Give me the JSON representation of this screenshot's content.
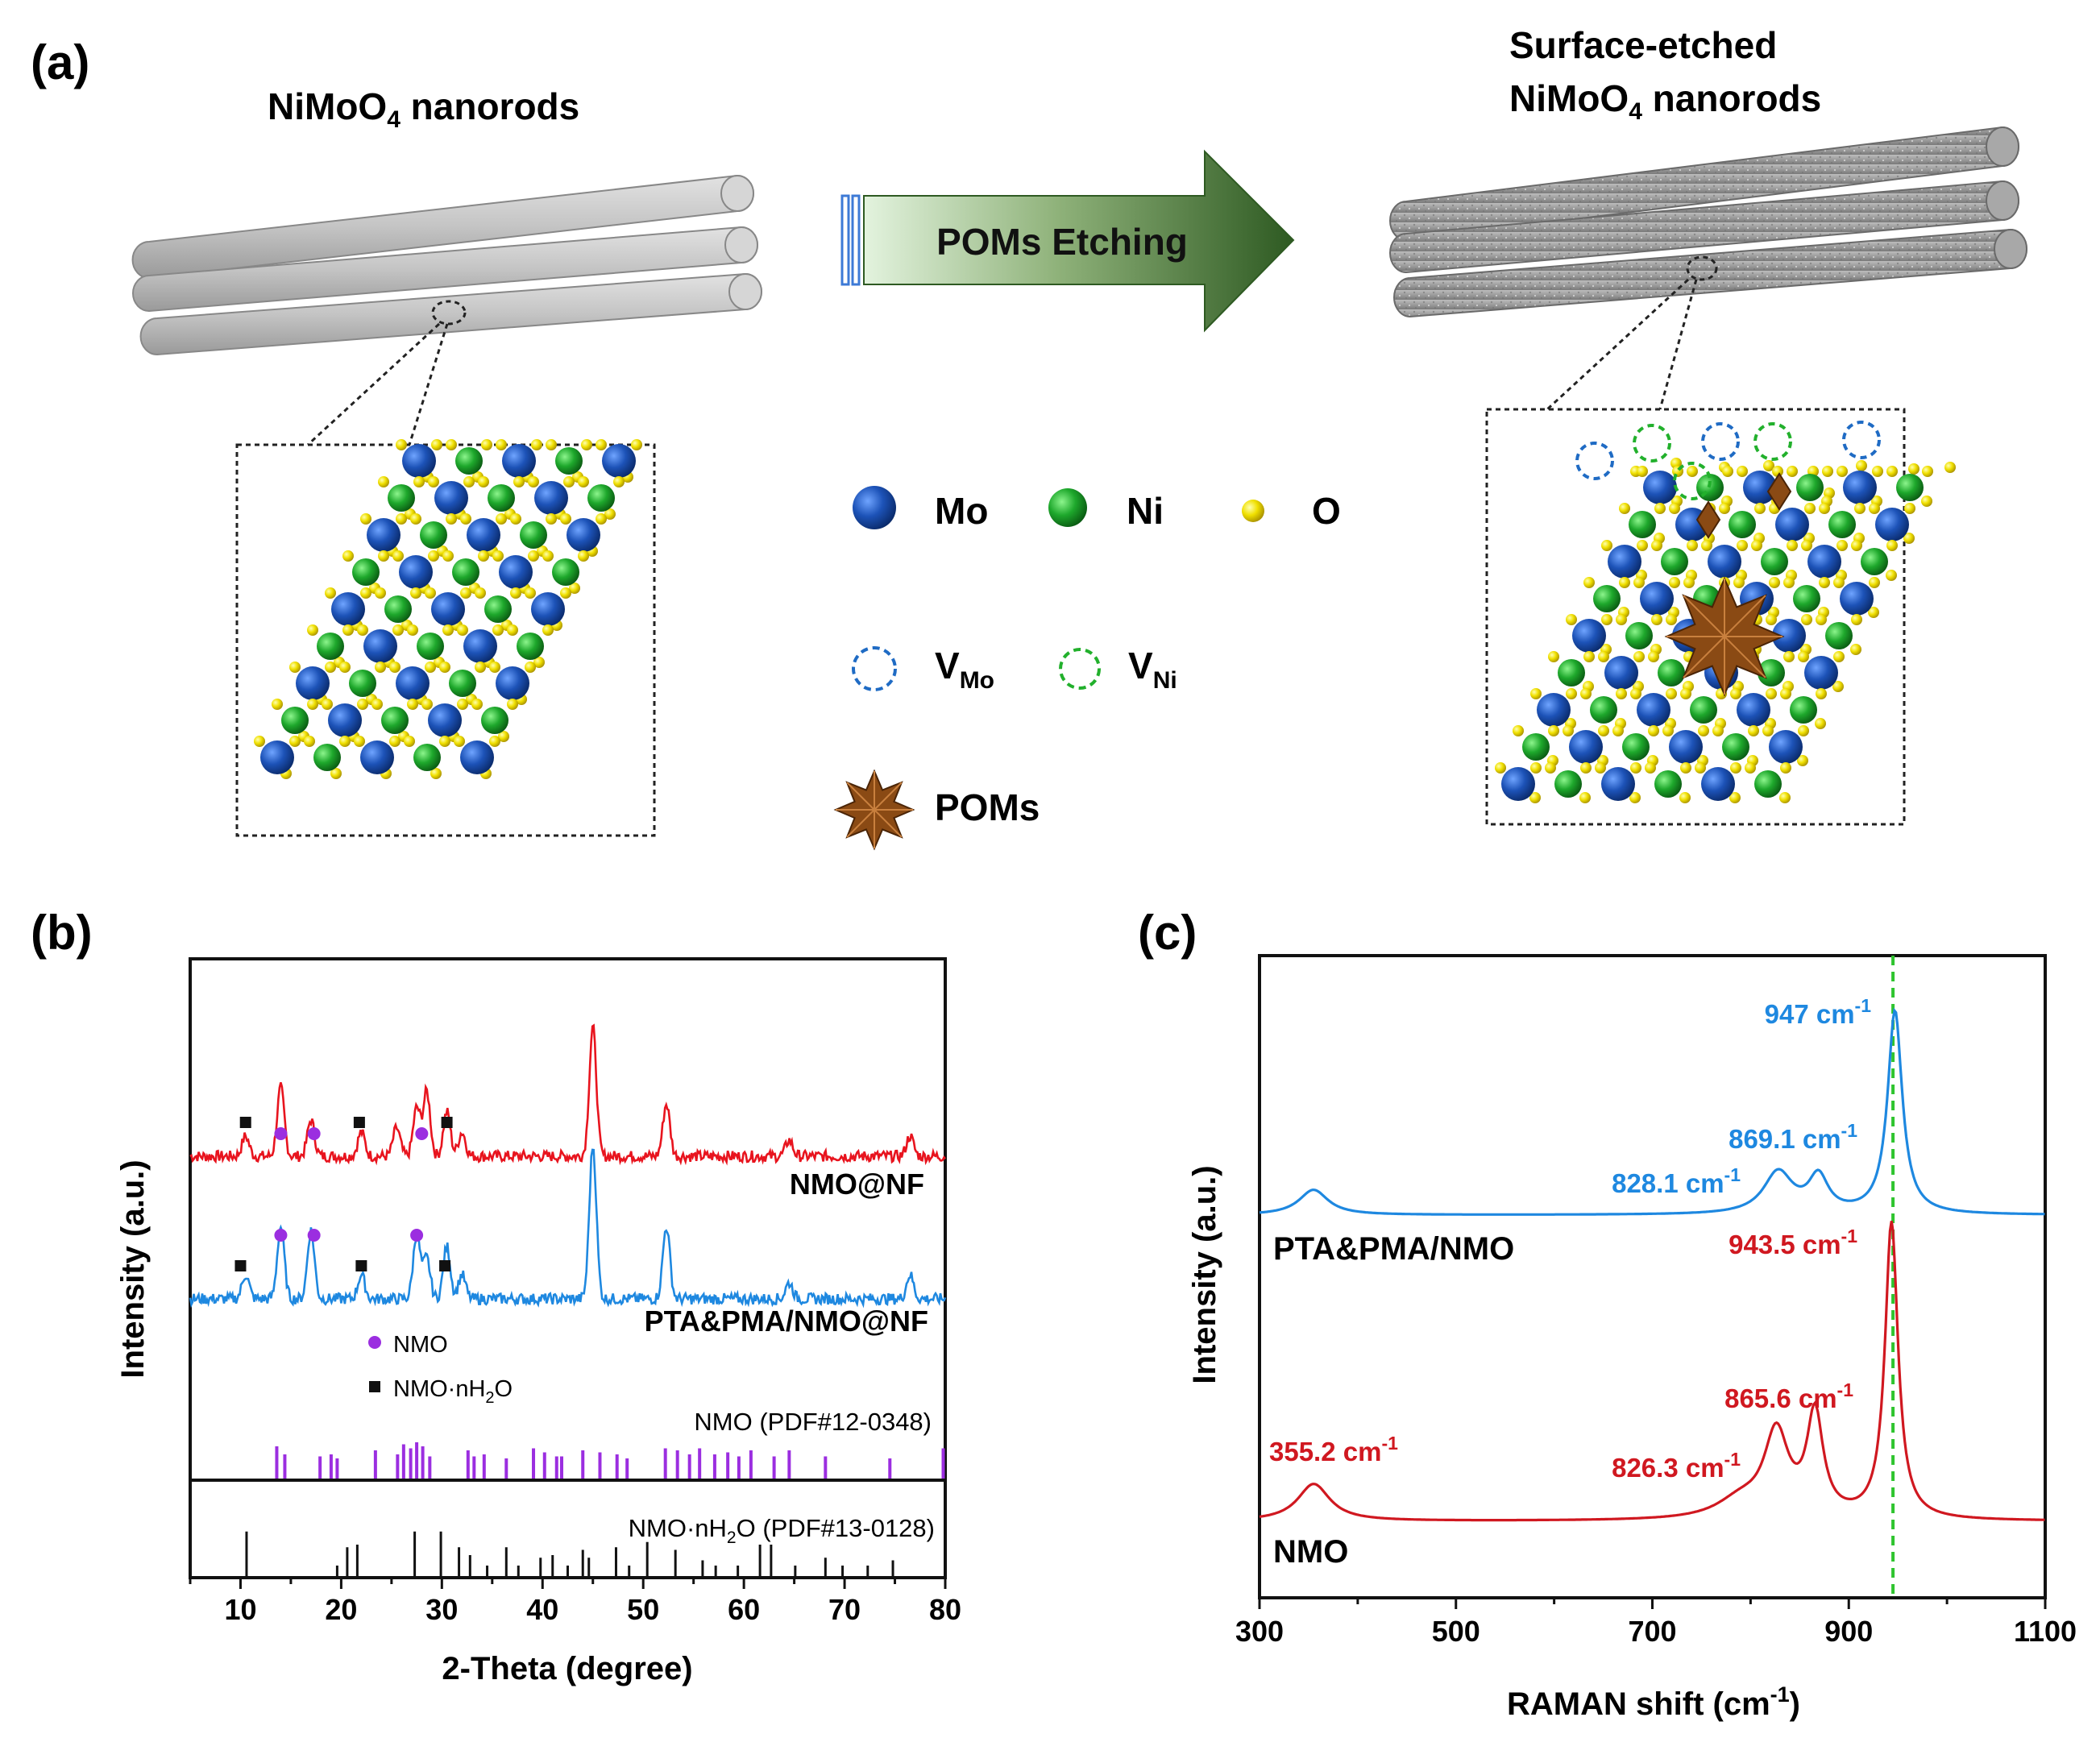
{
  "panel_a": {
    "label": "(a)",
    "left_title": "NiMoO",
    "left_title_sub": "4",
    "left_title_rest": " nanorods",
    "right_title_line1": "Surface-etched",
    "right_title_line2": "NiMoO",
    "right_title_line2_sub": "4",
    "right_title_line2_rest": " nanorods",
    "arrow_label": "POMs Etching",
    "legend": {
      "mo": "Mo",
      "ni": "Ni",
      "o": "O",
      "v_mo": "V",
      "v_mo_sub": "Mo",
      "v_ni": "V",
      "v_ni_sub": "Ni",
      "poms": "POMs"
    },
    "colors": {
      "mo": "#1f4e9c",
      "ni": "#1e9e2f",
      "o": "#f2e600",
      "poms": "#8a4a14",
      "arrow": "#3b6a2a"
    }
  },
  "chart_data": [
    {
      "panel": "(b)",
      "type": "line",
      "xlabel": "2-Theta (degree)",
      "ylabel": "Intensity (a.u.)",
      "xlim": [
        5,
        80
      ],
      "xticks": [
        "10",
        "20",
        "30",
        "40",
        "50",
        "60",
        "70",
        "80"
      ],
      "xtick_values": [
        10,
        20,
        30,
        40,
        50,
        60,
        70,
        80
      ],
      "series": [
        {
          "name": "NMO@NF",
          "color": "#e8141e",
          "peaks": [
            [
              10.5,
              0.25
            ],
            [
              14.0,
              0.85
            ],
            [
              17.0,
              0.45
            ],
            [
              22.0,
              0.3
            ],
            [
              25.5,
              0.35
            ],
            [
              27.5,
              0.6
            ],
            [
              28.5,
              0.8
            ],
            [
              30.5,
              0.55
            ],
            [
              32.0,
              0.3
            ],
            [
              45.0,
              1.6
            ],
            [
              52.3,
              0.65
            ],
            [
              64.5,
              0.2
            ],
            [
              76.5,
              0.25
            ]
          ]
        },
        {
          "name": "PTA&PMA/NMO@NF",
          "color": "#1e88e0",
          "peaks": [
            [
              10.5,
              0.3
            ],
            [
              14.0,
              0.9
            ],
            [
              17.0,
              0.85
            ],
            [
              22.0,
              0.3
            ],
            [
              27.5,
              0.8
            ],
            [
              28.5,
              0.5
            ],
            [
              30.5,
              0.65
            ],
            [
              32.0,
              0.3
            ],
            [
              45.0,
              1.9
            ],
            [
              52.3,
              0.9
            ],
            [
              64.5,
              0.2
            ],
            [
              76.5,
              0.3
            ]
          ]
        }
      ],
      "markers": {
        "nmo_label": "NMO",
        "hydrate_label": "NMO·nH",
        "hydrate_sub": "2",
        "hydrate_rest": "O",
        "nmo_color": "#9b2ee0",
        "hydrate_color": "#111111",
        "red_nmo": [
          14.0,
          17.3,
          28.0
        ],
        "red_hydrate": [
          10.5,
          21.8,
          30.5
        ],
        "blue_nmo": [
          14.0,
          17.3,
          27.5
        ],
        "blue_hydrate": [
          10.0,
          22.0,
          30.3
        ]
      },
      "reference_nmo": {
        "label": "NMO (PDF#12-0348)",
        "color": "#9b2ee0",
        "lines": [
          [
            13.6,
            0.8
          ],
          [
            14.4,
            0.6
          ],
          [
            17.9,
            0.55
          ],
          [
            19.0,
            0.6
          ],
          [
            19.6,
            0.5
          ],
          [
            23.4,
            0.7
          ],
          [
            25.6,
            0.6
          ],
          [
            26.2,
            0.85
          ],
          [
            26.9,
            0.75
          ],
          [
            27.5,
            0.9
          ],
          [
            28.1,
            0.8
          ],
          [
            28.8,
            0.55
          ],
          [
            32.6,
            0.7
          ],
          [
            33.2,
            0.55
          ],
          [
            34.2,
            0.6
          ],
          [
            36.4,
            0.5
          ],
          [
            39.1,
            0.75
          ],
          [
            40.2,
            0.65
          ],
          [
            41.4,
            0.55
          ],
          [
            41.9,
            0.55
          ],
          [
            44.0,
            0.7
          ],
          [
            45.7,
            0.65
          ],
          [
            47.4,
            0.6
          ],
          [
            48.4,
            0.5
          ],
          [
            52.2,
            0.75
          ],
          [
            53.4,
            0.7
          ],
          [
            54.6,
            0.6
          ],
          [
            55.6,
            0.75
          ],
          [
            57.1,
            0.6
          ],
          [
            58.4,
            0.65
          ],
          [
            59.5,
            0.55
          ],
          [
            60.7,
            0.7
          ],
          [
            63.0,
            0.55
          ],
          [
            64.5,
            0.7
          ],
          [
            68.1,
            0.55
          ],
          [
            74.5,
            0.5
          ],
          [
            79.8,
            0.75
          ]
        ]
      },
      "reference_hydrate": {
        "label": "NMO·nH",
        "label_sub": "2",
        "label_rest": "O (PDF#13-0128)",
        "color": "#111111",
        "lines": [
          [
            10.6,
            0.85
          ],
          [
            19.6,
            0.2
          ],
          [
            20.6,
            0.55
          ],
          [
            21.6,
            0.6
          ],
          [
            27.3,
            0.85
          ],
          [
            29.9,
            0.85
          ],
          [
            31.7,
            0.55
          ],
          [
            32.8,
            0.4
          ],
          [
            34.5,
            0.2
          ],
          [
            36.4,
            0.55
          ],
          [
            37.6,
            0.2
          ],
          [
            39.8,
            0.35
          ],
          [
            41.0,
            0.4
          ],
          [
            42.5,
            0.2
          ],
          [
            44.0,
            0.5
          ],
          [
            44.6,
            0.35
          ],
          [
            47.3,
            0.55
          ],
          [
            48.6,
            0.2
          ],
          [
            50.4,
            0.65
          ],
          [
            53.2,
            0.5
          ],
          [
            55.9,
            0.3
          ],
          [
            57.2,
            0.2
          ],
          [
            59.4,
            0.2
          ],
          [
            61.6,
            0.6
          ],
          [
            62.7,
            0.6
          ],
          [
            65.1,
            0.2
          ],
          [
            68.1,
            0.35
          ],
          [
            69.8,
            0.2
          ],
          [
            72.3,
            0.2
          ],
          [
            74.8,
            0.3
          ]
        ]
      }
    },
    {
      "panel": "(c)",
      "type": "line",
      "xlabel": "RAMAN shift (cm",
      "xlabel_sup": "-1",
      "xlabel_end": ")",
      "ylabel": "Intensity (a.u.)",
      "xlim": [
        300,
        1100
      ],
      "xticks": [
        "300",
        "500",
        "700",
        "900",
        "1100"
      ],
      "xtick_values": [
        300,
        500,
        700,
        900,
        1100
      ],
      "reference_line_x": 945,
      "reference_line_color": "#2fc42f",
      "series": [
        {
          "name": "PTA&PMA/NMO",
          "color": "#1e88e0",
          "peaks": [
            [
              355,
              0.12,
              18
            ],
            [
              828.1,
              0.2,
              18
            ],
            [
              869.1,
              0.17,
              12
            ],
            [
              947,
              0.97,
              9
            ]
          ],
          "annotations": [
            {
              "x": 947,
              "text": "947 cm",
              "sup": "-1"
            },
            {
              "x": 869.1,
              "text": "869.1 cm",
              "sup": "-1"
            },
            {
              "x": 828.1,
              "text": "828.1 cm",
              "sup": "-1"
            }
          ]
        },
        {
          "name": "NMO",
          "color": "#d01820",
          "peaks": [
            [
              355.2,
              0.2,
              20
            ],
            [
              826.3,
              0.45,
              15
            ],
            [
              865.6,
              0.55,
              10
            ],
            [
              943.5,
              1.6,
              8
            ],
            [
              790,
              0.1,
              30
            ]
          ],
          "annotations": [
            {
              "x": 943.5,
              "text": "943.5 cm",
              "sup": "-1"
            },
            {
              "x": 865.6,
              "text": "865.6 cm",
              "sup": "-1"
            },
            {
              "x": 826.3,
              "text": "826.3 cm",
              "sup": "-1"
            },
            {
              "x": 355.2,
              "text": "355.2 cm",
              "sup": "-1"
            }
          ]
        }
      ]
    }
  ],
  "panel_b_label": "(b)",
  "panel_c_label": "(c)"
}
